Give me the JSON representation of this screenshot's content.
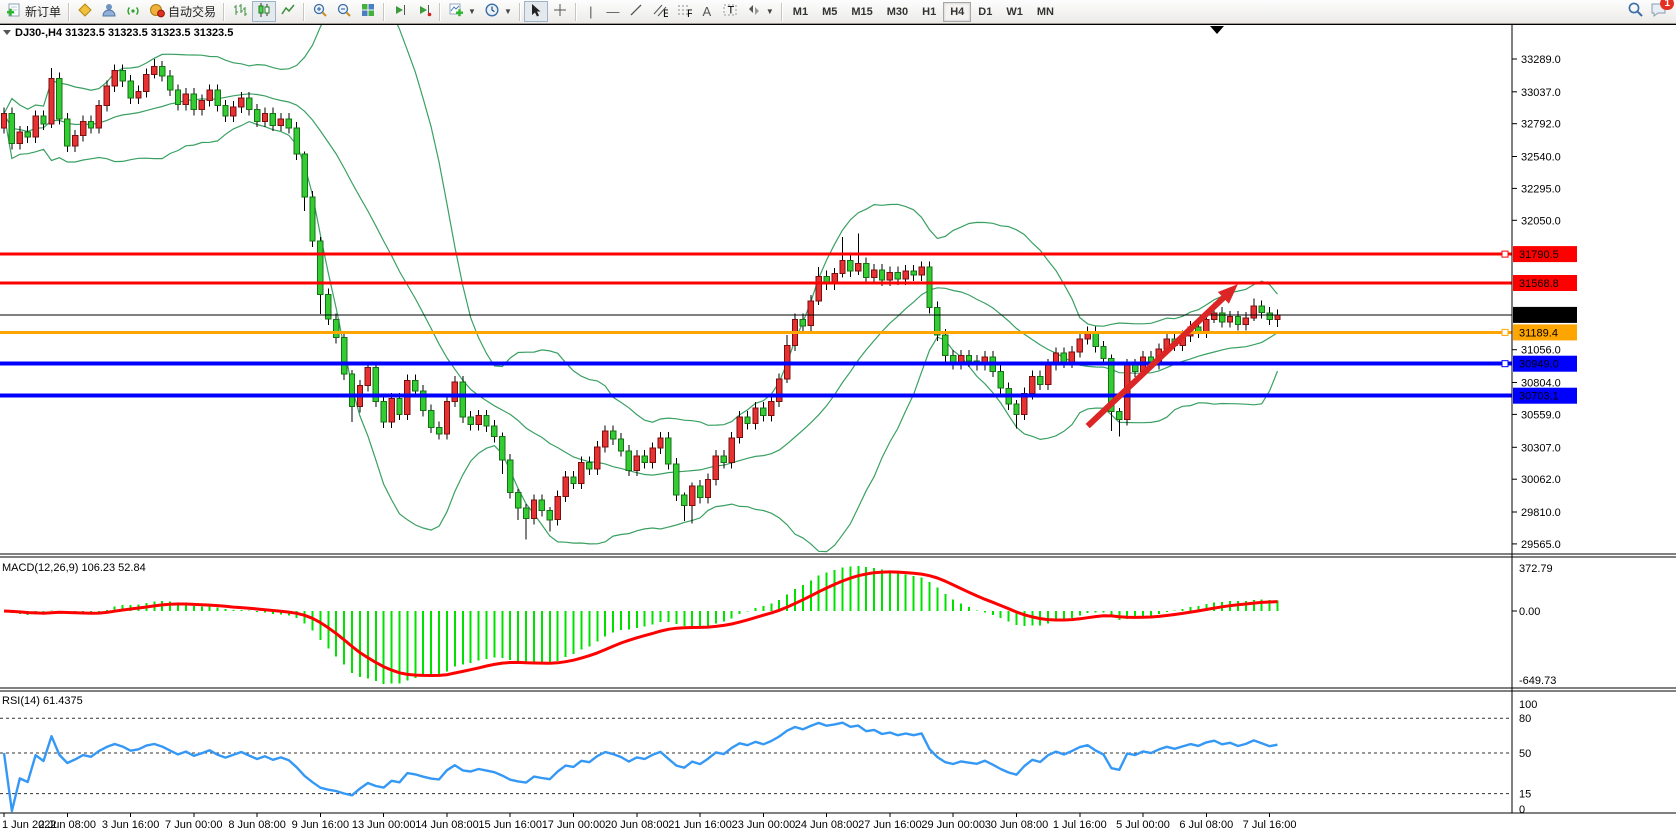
{
  "toolbar": {
    "new_order_label": "新订单",
    "autotrading_label": "自动交易",
    "timeframes": [
      "M1",
      "M5",
      "M15",
      "M30",
      "H1",
      "H4",
      "D1",
      "W1",
      "MN"
    ],
    "active_timeframe": "H4",
    "notification_count": "1"
  },
  "chart": {
    "symbol_label": "DJ30-,H4 31323.5 31323.5 31323.5 31323.5",
    "y_ticks": [
      33289.0,
      33037.0,
      32792.0,
      32540.0,
      32295.0,
      32050.0,
      31056.0,
      30804.0,
      30559.0,
      30307.0,
      30062.0,
      29810.0,
      29565.0
    ],
    "price_lines": [
      {
        "label": "31790.5",
        "value": 31790.5,
        "line": "#ff0000",
        "lw": 3,
        "badge": "#ff0000",
        "anchor": true
      },
      {
        "label": "31568.8",
        "value": 31568.8,
        "line": "#ff0000",
        "lw": 3,
        "badge": "#ff0000",
        "anchor": false
      },
      {
        "label": "31323.5",
        "value": 31323.5,
        "line": "#000000",
        "lw": 1,
        "badge": "#000000",
        "anchor": false
      },
      {
        "label": "31189.4",
        "value": 31189.4,
        "line": "#ffa500",
        "lw": 3,
        "badge": "#ffa500",
        "anchor": true
      },
      {
        "label": "30949.0",
        "value": 30949.0,
        "line": "#0000ff",
        "lw": 4,
        "badge": "#0000ff",
        "anchor": true
      },
      {
        "label": "30703.1",
        "value": 30703.1,
        "line": "#0000ff",
        "lw": 4,
        "badge": "#0000ff",
        "anchor": false
      }
    ],
    "x_labels": [
      "1 Jun 2022",
      "2 Jun 08:00",
      "3 Jun 16:00",
      "7 Jun 00:00",
      "8 Jun 08:00",
      "9 Jun 16:00",
      "13 Jun 00:00",
      "14 Jun 08:00",
      "15 Jun 16:00",
      "17 Jun 00:00",
      "20 Jun 08:00",
      "21 Jun 16:00",
      "23 Jun 00:00",
      "24 Jun 08:00",
      "27 Jun 16:00",
      "29 Jun 00:00",
      "30 Jun 08:00",
      "1 Jul 16:00",
      "5 Jul 00:00",
      "6 Jul 08:00",
      "7 Jul 16:00"
    ],
    "colors": {
      "up_fill": "#e63232",
      "up_stroke": "#7a0f0f",
      "down_fill": "#33cc33",
      "down_stroke": "#167016",
      "wick": "#000000",
      "bollinger": "#3aa062",
      "macd_hist": "#00e100",
      "macd_signal": "#fe0000",
      "rsi_line": "#3598f5",
      "arrow": "#dc2626"
    },
    "arrow": {
      "from_bar": 137,
      "from_price": 30470,
      "to_bar": 156,
      "to_price": 31560
    }
  },
  "chart_data": {
    "type": "candlestick+indicators",
    "symbol": "DJ30-",
    "timeframe": "H4",
    "candles": {
      "first_open": 32760,
      "closes": [
        32870,
        32640,
        32730,
        32690,
        32850,
        32790,
        33140,
        32830,
        32620,
        32700,
        32810,
        32760,
        32930,
        33080,
        33200,
        33120,
        32990,
        33040,
        33170,
        33230,
        33160,
        33050,
        32940,
        33020,
        32900,
        32970,
        33050,
        32930,
        32850,
        32920,
        32990,
        32900,
        32810,
        32870,
        32780,
        32830,
        32760,
        32560,
        32230,
        31890,
        31480,
        31290,
        31150,
        30870,
        30620,
        30780,
        30920,
        30660,
        30500,
        30680,
        30560,
        30820,
        30740,
        30590,
        30460,
        30410,
        30660,
        30810,
        30540,
        30480,
        30550,
        30470,
        30390,
        30210,
        29960,
        29840,
        29760,
        29900,
        29820,
        29750,
        29930,
        30080,
        30030,
        30190,
        30140,
        30310,
        30430,
        30370,
        30280,
        30130,
        30240,
        30190,
        30300,
        30380,
        30180,
        29940,
        29860,
        30010,
        29920,
        30060,
        30240,
        30190,
        30380,
        30540,
        30490,
        30610,
        30550,
        30660,
        30830,
        31090,
        31290,
        31240,
        31430,
        31620,
        31560,
        31640,
        31740,
        31660,
        31720,
        31610,
        31670,
        31590,
        31650,
        31600,
        31660,
        31630,
        31690,
        31380,
        31170,
        31010,
        30950,
        31010,
        30970,
        30940,
        31000,
        30890,
        30760,
        30640,
        30560,
        30720,
        30850,
        30790,
        30940,
        31030,
        30960,
        31040,
        31140,
        31190,
        31080,
        30990,
        30580,
        30520,
        30940,
        30890,
        31000,
        30950,
        31060,
        31140,
        31090,
        31160,
        31230,
        31190,
        31290,
        31340,
        31270,
        31310,
        31250,
        31300,
        31390,
        31340,
        31290,
        31323.5
      ],
      "default_wick": 45,
      "wick_overrides": {
        "6": [
          80,
          30
        ],
        "19": [
          60,
          30
        ],
        "38": [
          20,
          110
        ],
        "40": [
          30,
          150
        ],
        "44": [
          30,
          120
        ],
        "63": [
          30,
          110
        ],
        "65": [
          25,
          90
        ],
        "66": [
          30,
          160
        ],
        "69": [
          30,
          90
        ],
        "86": [
          20,
          120
        ],
        "87": [
          25,
          140
        ],
        "99": [
          80,
          30
        ],
        "103": [
          70,
          30
        ],
        "106": [
          180,
          30
        ],
        "108": [
          230,
          30
        ],
        "128": [
          30,
          110
        ],
        "140": [
          30,
          150
        ],
        "141": [
          30,
          130
        ],
        "153": [
          80,
          30
        ],
        "158": [
          60,
          25
        ],
        "161": [
          40,
          60
        ]
      }
    },
    "bollinger": {
      "period": 20,
      "deviation": 2
    },
    "macd": {
      "label": "MACD(12,26,9) 106.23 52.84",
      "fast": 12,
      "slow": 26,
      "signal_period": 9,
      "value": 106.23,
      "signal": 52.84,
      "axis_labels": [
        "372.79",
        "0.00",
        "-649.73"
      ]
    },
    "rsi": {
      "label": "RSI(14) 61.4375",
      "period": 14,
      "value": 61.4375,
      "levels": [
        80,
        50,
        15
      ],
      "axis_labels": [
        "100",
        "80",
        "50",
        "15",
        "0"
      ]
    }
  }
}
